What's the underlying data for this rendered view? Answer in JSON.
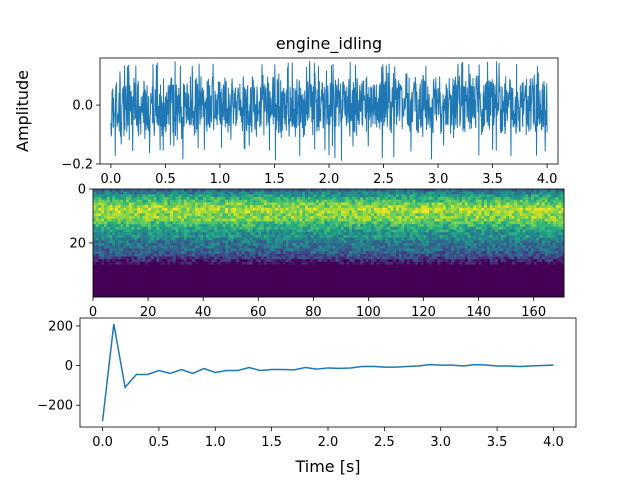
{
  "chart_data": [
    {
      "type": "line",
      "title": "engine_idling",
      "ylabel": "Amplitude",
      "xlabel": "",
      "xlim": [
        -0.1,
        4.1
      ],
      "ylim": [
        -0.2,
        0.16
      ],
      "xticks": [
        "0.0",
        "0.5",
        "1.0",
        "1.5",
        "2.0",
        "2.5",
        "3.0",
        "3.5",
        "4.0"
      ],
      "yticks": [
        "0.0",
        "−0.2"
      ],
      "series": [
        {
          "color": "#1f77b4",
          "description_of_values": "dense noisy waveform centred at 0 spanning 0 to 4 s",
          "envelope": {
            "typical_max": 0.12,
            "typical_min": -0.12,
            "peak_max": 0.15,
            "peak_min": -0.19
          }
        }
      ]
    },
    {
      "type": "heatmap",
      "colormap": "viridis",
      "xlim": [
        0,
        171
      ],
      "ylim": [
        0,
        40
      ],
      "xticks": [
        "0",
        "20",
        "40",
        "60",
        "80",
        "100",
        "120",
        "140",
        "160"
      ],
      "yticks": [
        "0",
        "20"
      ],
      "rows": 40,
      "cols": 171,
      "row_profile": [
        0.35,
        0.45,
        0.55,
        0.62,
        0.7,
        0.78,
        0.82,
        0.88,
        0.85,
        0.8,
        0.82,
        0.78,
        0.7,
        0.65,
        0.6,
        0.55,
        0.5,
        0.52,
        0.45,
        0.4,
        0.38,
        0.36,
        0.33,
        0.3,
        0.25,
        0.18,
        0.1,
        0.03,
        0.0,
        0.0,
        0.0,
        0.0,
        0.0,
        0.0,
        0.0,
        0.0,
        0.0,
        0.0,
        0.0,
        0.0
      ]
    },
    {
      "type": "line",
      "xlabel": "Time [s]",
      "ylabel": "",
      "xlim": [
        -0.2,
        4.2
      ],
      "ylim": [
        -310,
        240
      ],
      "xticks": [
        "0.0",
        "0.5",
        "1.0",
        "1.5",
        "2.0",
        "2.5",
        "3.0",
        "3.5",
        "4.0"
      ],
      "yticks": [
        "200",
        "0",
        "−200"
      ],
      "series": [
        {
          "color": "#1f77b4",
          "x": [
            0.0,
            0.1,
            0.2,
            0.3,
            0.4,
            0.5,
            0.6,
            0.7,
            0.8,
            0.9,
            1.0,
            1.1,
            1.2,
            1.3,
            1.4,
            1.5,
            1.6,
            1.7,
            1.8,
            1.9,
            2.0,
            2.1,
            2.2,
            2.3,
            2.4,
            2.5,
            2.6,
            2.7,
            2.8,
            2.9,
            3.0,
            3.1,
            3.2,
            3.3,
            3.4,
            3.5,
            3.6,
            3.7,
            3.8,
            3.9,
            4.0
          ],
          "values": [
            -280,
            210,
            -110,
            -45,
            -45,
            -25,
            -40,
            -20,
            -40,
            -15,
            -35,
            -25,
            -25,
            -10,
            -25,
            -20,
            -20,
            -22,
            -10,
            -18,
            -12,
            -14,
            -12,
            -5,
            -4,
            -8,
            -8,
            -5,
            -2,
            5,
            2,
            2,
            -2,
            5,
            3,
            -2,
            -2,
            -5,
            -2,
            0,
            2
          ]
        }
      ]
    }
  ]
}
